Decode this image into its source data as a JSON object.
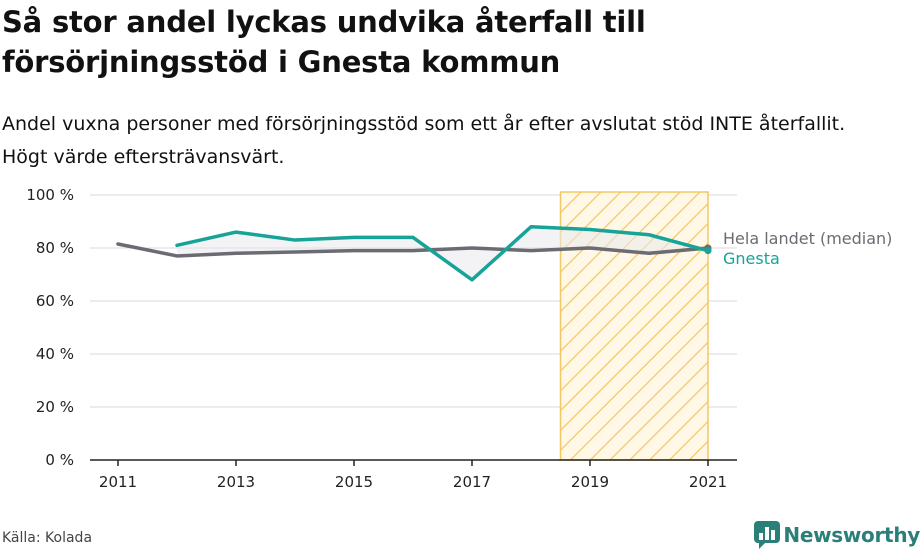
{
  "title": "Så stor andel lyckas undvika återfall till försörjningsstöd i Gnesta kommun",
  "subtitle": "Andel vuxna personer med försörjningsstöd som ett år efter avslutat stöd INTE återfallit. Högt värde eftersträvansvärt.",
  "source": "Källa: Kolada",
  "brand": {
    "name": "Newsworthy",
    "icon": "newsworthy-logo-icon"
  },
  "colors": {
    "gnesta": "#17a398",
    "median": "#6b6b73",
    "highlight": "#f3c766",
    "grid": "#d9d9d9"
  },
  "chart_data": {
    "type": "line",
    "x": [
      2011,
      2012,
      2013,
      2014,
      2015,
      2016,
      2017,
      2018,
      2019,
      2020,
      2021
    ],
    "xticks": [
      "2011",
      "2013",
      "2015",
      "2017",
      "2019",
      "2021"
    ],
    "yticks": [
      "0 %",
      "20 %",
      "40 %",
      "60 %",
      "80 %",
      "100 %"
    ],
    "ylim": [
      0,
      100
    ],
    "grid": true,
    "highlight_range": [
      2018.5,
      2021
    ],
    "series": [
      {
        "name": "Hela landet (median)",
        "values": [
          81.5,
          77,
          78,
          78.5,
          79,
          79,
          80,
          79,
          80,
          78,
          80
        ]
      },
      {
        "name": "Gnesta",
        "values": [
          null,
          81,
          86,
          83,
          84,
          84,
          68,
          88,
          87,
          85,
          79
        ]
      }
    ]
  }
}
